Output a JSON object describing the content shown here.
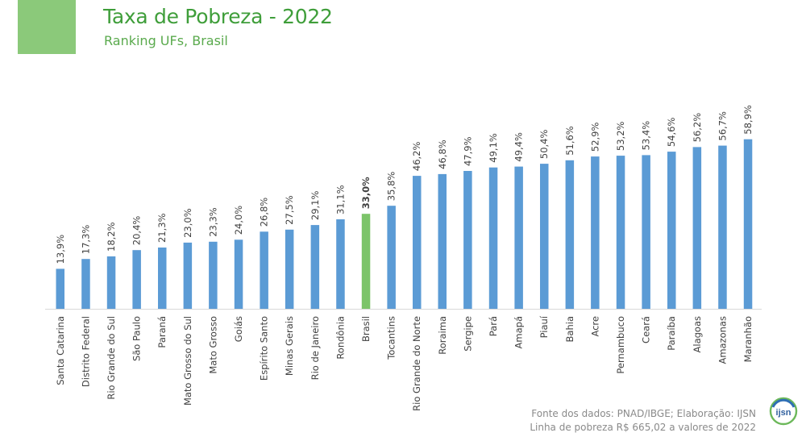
{
  "header": {
    "title": "Taxa de Pobreza - 2022",
    "subtitle": "Ranking UFs, Brasil"
  },
  "chart_data": {
    "type": "bar",
    "title": "Taxa de Pobreza - 2022",
    "subtitle": "Ranking UFs, Brasil",
    "categories": [
      "Santa Catarina",
      "Distrito Federal",
      "Rio Grande do Sul",
      "São Paulo",
      "Paraná",
      "Mato Grosso do Sul",
      "Mato Grosso",
      "Goiás",
      "Espírito Santo",
      "Minas Gerais",
      "Rio de Janeiro",
      "Rondônia",
      "Brasil",
      "Tocantins",
      "Rio Grande do Norte",
      "Roraima",
      "Sergipe",
      "Pará",
      "Amapá",
      "Piauí",
      "Bahia",
      "Acre",
      "Pernambuco",
      "Ceará",
      "Paraíba",
      "Alagoas",
      "Amazonas",
      "Maranhão"
    ],
    "values": [
      13.9,
      17.3,
      18.2,
      20.4,
      21.3,
      23.0,
      23.3,
      24.0,
      26.8,
      27.5,
      29.1,
      31.1,
      33.0,
      35.8,
      46.2,
      46.8,
      47.9,
      49.1,
      49.4,
      50.4,
      51.6,
      52.9,
      53.2,
      53.4,
      54.6,
      56.2,
      56.7,
      58.9
    ],
    "data_labels": [
      "13,9%",
      "17,3%",
      "18,2%",
      "20,4%",
      "21,3%",
      "23,0%",
      "23,3%",
      "24,0%",
      "26,8%",
      "27,5%",
      "29,1%",
      "31,1%",
      "33,0%",
      "35,8%",
      "46,2%",
      "46,8%",
      "47,9%",
      "49,1%",
      "49,4%",
      "50,4%",
      "51,6%",
      "52,9%",
      "53,2%",
      "53,4%",
      "54,6%",
      "56,2%",
      "56,7%",
      "58,9%"
    ],
    "highlight": "Brasil",
    "ylim": [
      0,
      60
    ],
    "grid": false,
    "legend": "none",
    "colors": {
      "bar": "#5b9bd5",
      "highlight": "#7cc46a",
      "label": "#404040",
      "axis": "#d9d9d9"
    }
  },
  "footer": {
    "source": "Fonte dos dados: PNAD/IBGE; Elaboração: IJSN",
    "note": "Linha de pobreza R$ 665,02 a valores de 2022"
  },
  "logo": {
    "text": "ijsn"
  }
}
